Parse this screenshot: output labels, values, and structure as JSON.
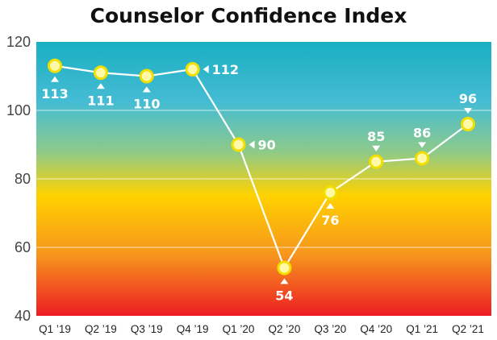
{
  "chart_data": {
    "type": "line",
    "title": "Counselor Confidence Index",
    "xlabel": "",
    "ylabel": "",
    "categories": [
      "Q1 ’19",
      "Q2 ’19",
      "Q3 ’19",
      "Q4 ’19",
      "Q1 ’20",
      "Q2 ’20",
      "Q3 ’20",
      "Q4 ’20",
      "Q1 ’21",
      "Q2 ’21"
    ],
    "values": [
      113,
      111,
      110,
      112,
      90,
      54,
      76,
      85,
      86,
      96
    ],
    "data_labels": [
      "113",
      "111",
      "110",
      "112",
      "90",
      "54",
      "76",
      "85",
      "86",
      "96"
    ],
    "yticks": [
      40,
      60,
      80,
      100,
      120
    ],
    "ylim": [
      40,
      120
    ],
    "grid": true,
    "legend": "none",
    "background_gradient": [
      "#1aafc2",
      "#45bcd4",
      "#8dca8a",
      "#ffd200",
      "#f7941d",
      "#ed1c24"
    ],
    "line_color": "#ffffff",
    "marker_fill": "#fff9a8",
    "marker_stroke": "#f2df00"
  }
}
